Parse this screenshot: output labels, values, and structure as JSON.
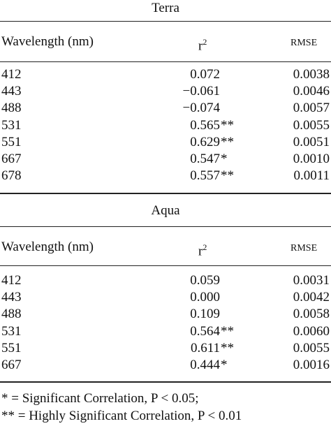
{
  "sections": [
    {
      "title": "Terra",
      "header": {
        "wavelength": "Wavelength (nm)",
        "r": "r",
        "r_sup": "2",
        "rmse": "RMSE"
      },
      "rows": [
        {
          "wavelength": "412",
          "r2": "0.072",
          "sig": "",
          "rmse": "0.0038"
        },
        {
          "wavelength": "443",
          "r2": "−0.061",
          "sig": "",
          "rmse": "0.0046"
        },
        {
          "wavelength": "488",
          "r2": "−0.074",
          "sig": "",
          "rmse": "0.0057"
        },
        {
          "wavelength": "531",
          "r2": "0.565",
          "sig": "**",
          "rmse": "0.0055"
        },
        {
          "wavelength": "551",
          "r2": "0.629",
          "sig": "**",
          "rmse": "0.0051"
        },
        {
          "wavelength": "667",
          "r2": "0.547",
          "sig": "*",
          "rmse": "0.0010"
        },
        {
          "wavelength": "678",
          "r2": "0.557",
          "sig": "**",
          "rmse": "0.0011"
        }
      ]
    },
    {
      "title": "Aqua",
      "header": {
        "wavelength": "Wavelength (nm)",
        "r": "r",
        "r_sup": "2",
        "rmse": "RMSE"
      },
      "rows": [
        {
          "wavelength": "412",
          "r2": "0.059",
          "sig": "",
          "rmse": "0.0031"
        },
        {
          "wavelength": "443",
          "r2": "0.000",
          "sig": "",
          "rmse": "0.0042"
        },
        {
          "wavelength": "488",
          "r2": "0.109",
          "sig": "",
          "rmse": "0.0058"
        },
        {
          "wavelength": "531",
          "r2": "0.564",
          "sig": "**",
          "rmse": "0.0060"
        },
        {
          "wavelength": "551",
          "r2": "0.611",
          "sig": "**",
          "rmse": "0.0055"
        },
        {
          "wavelength": "667",
          "r2": "0.444",
          "sig": "*",
          "rmse": "0.0016"
        }
      ]
    }
  ],
  "footnotes": [
    "* = Significant Correlation, P < 0.05;",
    "** = Highly Significant Correlation, P < 0.01"
  ]
}
